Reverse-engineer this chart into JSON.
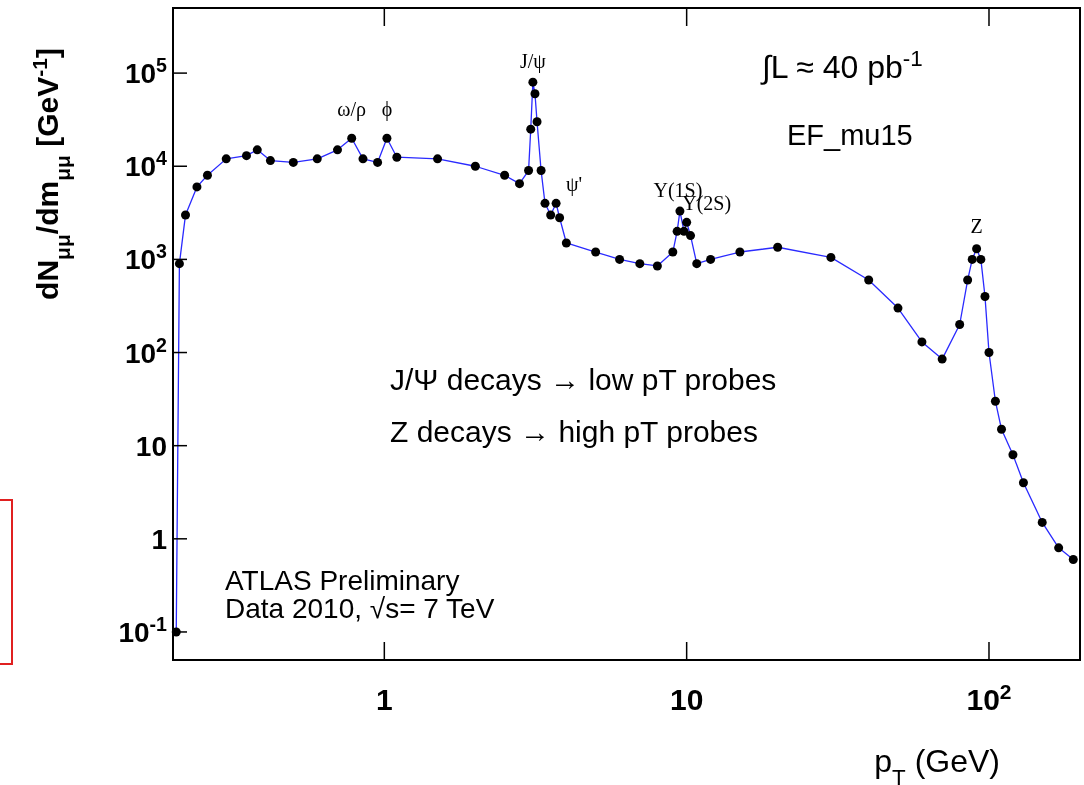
{
  "chart_data": {
    "type": "line",
    "xlabel": "p$_{T}$ (GeV)",
    "ylabel": "dN$_{μμ}$/dm$_{μμ}$ [GeV$^{-1}$]",
    "log": "xy",
    "marker": "circle",
    "line_style": "solid",
    "grid": false,
    "xlim": [
      0.2,
      200
    ],
    "ylim": [
      0.05,
      500000
    ],
    "xticks": [
      1,
      10,
      {
        "value": 100,
        "label": "10$^{2}$"
      }
    ],
    "yticks": [
      {
        "value": 0.1,
        "label": "10$^{-1}$"
      },
      1,
      10,
      {
        "value": 100,
        "label": "10$^{2}$"
      },
      {
        "value": 1000,
        "label": "10$^{3}$"
      },
      {
        "value": 10000,
        "label": "10$^{4}$"
      },
      {
        "value": 100000,
        "label": "10$^{5}$"
      }
    ],
    "series": [
      {
        "color": "#000000",
        "x": [
          0.205,
          0.21,
          0.22,
          0.24,
          0.26,
          0.3,
          0.35,
          0.38,
          0.42,
          0.5,
          0.6,
          0.7,
          0.78,
          0.85,
          0.95,
          1.02,
          1.1,
          1.5,
          2.0,
          2.5,
          2.8,
          3.0,
          3.05,
          3.1,
          3.15,
          3.2,
          3.3,
          3.4,
          3.55,
          3.7,
          3.8,
          4.0,
          5,
          6,
          7,
          8,
          9,
          9.3,
          9.5,
          9.8,
          10.0,
          10.3,
          10.8,
          12,
          15,
          20,
          30,
          40,
          50,
          60,
          70,
          80,
          85,
          88,
          91,
          94,
          97,
          100,
          105,
          110,
          120,
          130,
          150,
          170,
          190
        ],
        "values": [
          0.1,
          900,
          3000,
          6000,
          8000,
          12000,
          13000,
          15000,
          11500,
          11000,
          12000,
          15000,
          20000,
          12000,
          11000,
          20000,
          12500,
          12000,
          10000,
          8000,
          6500,
          9000,
          25000,
          80000,
          60000,
          30000,
          9000,
          4000,
          3000,
          4000,
          2800,
          1500,
          1200,
          1000,
          900,
          850,
          1200,
          2000,
          3300,
          2000,
          2500,
          1800,
          900,
          1000,
          1200,
          1350,
          1050,
          600,
          300,
          130,
          85,
          200,
          600,
          1000,
          1300,
          1000,
          400,
          100,
          30,
          15,
          8,
          4,
          1.5,
          0.8,
          0.6
        ]
      }
    ],
    "annotations": [
      {
        "text": "ω/ρ",
        "x": 0.78,
        "y": 20000
      },
      {
        "text": "ϕ",
        "x": 1.02,
        "y": 20000
      },
      {
        "text": "J/ψ",
        "x": 3.1,
        "y": 80000
      },
      {
        "text": "ψ'",
        "x": 3.7,
        "y": 4000
      },
      {
        "text": "Υ(1S)",
        "x": 9.5,
        "y": 3300
      },
      {
        "text": "Υ(2S)",
        "x": 10.0,
        "y": 2500
      },
      {
        "text": "Z",
        "x": 91,
        "y": 1300
      },
      "∫L ≈ 40 pb$^{-1}$",
      "EF_mu15",
      "J/Ψ decays → low pT probes",
      "Z decays → high pT probes",
      "ATLAS Preliminary",
      "Data 2010, √s= 7 TeV"
    ]
  }
}
